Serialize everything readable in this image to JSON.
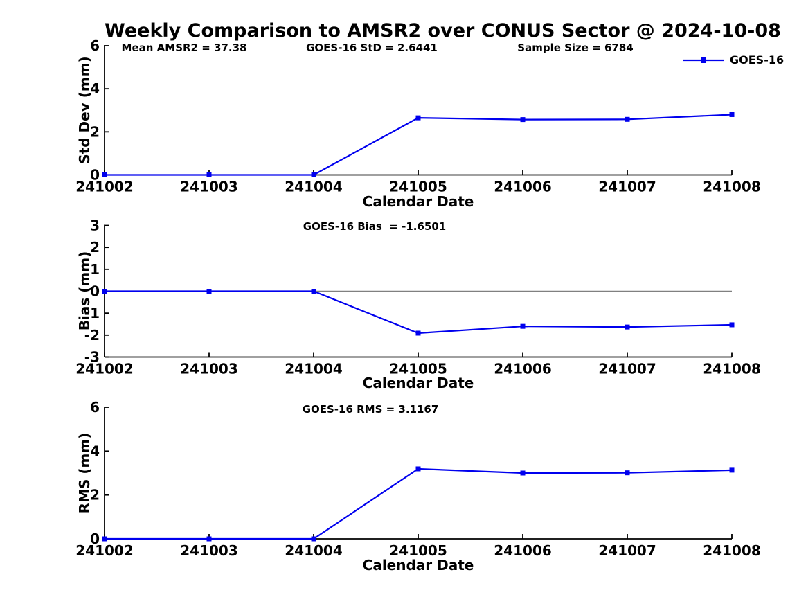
{
  "figure": {
    "title": "Weekly Comparison to AMSR2 over CONUS Sector @ 2024-10-08",
    "legend": {
      "label": "GOES-16",
      "marker": "filled-square"
    }
  },
  "colors": {
    "series": "#0000EE",
    "zero_line": "#808080",
    "axis": "#000000",
    "text": "#000000"
  },
  "chart_data": [
    {
      "type": "line",
      "subplot": "std-dev",
      "x": [
        "241002",
        "241003",
        "241004",
        "241005",
        "241006",
        "241007",
        "241008"
      ],
      "series": [
        {
          "name": "GOES-16",
          "values": [
            0,
            0,
            0,
            2.65,
            2.57,
            2.58,
            2.8
          ]
        }
      ],
      "xlabel": "Calendar Date",
      "ylabel": "Std Dev (mm)",
      "ylim": [
        0,
        6
      ],
      "yticks": [
        0,
        2,
        4,
        6
      ],
      "grid": false,
      "legend_position": "top-right-outside",
      "annotations": [
        "Mean AMSR2 = 37.38",
        "GOES-16 StD = 2.6441",
        "Sample Size = 6784"
      ]
    },
    {
      "type": "line",
      "subplot": "bias",
      "x": [
        "241002",
        "241003",
        "241004",
        "241005",
        "241006",
        "241007",
        "241008"
      ],
      "series": [
        {
          "name": "GOES-16",
          "values": [
            0,
            0,
            0,
            -1.91,
            -1.6,
            -1.63,
            -1.53
          ]
        }
      ],
      "xlabel": "Calendar Date",
      "ylabel": "Bias (mm)",
      "ylim": [
        -3,
        3
      ],
      "yticks": [
        -3,
        -2,
        -1,
        0,
        1,
        2,
        3
      ],
      "grid": false,
      "zero_line": true,
      "annotations": [
        "GOES-16 Bias  = -1.6501"
      ]
    },
    {
      "type": "line",
      "subplot": "rms",
      "x": [
        "241002",
        "241003",
        "241004",
        "241005",
        "241006",
        "241007",
        "241008"
      ],
      "series": [
        {
          "name": "GOES-16",
          "values": [
            0,
            0,
            0,
            3.19,
            3.0,
            3.01,
            3.13
          ]
        }
      ],
      "xlabel": "Calendar Date",
      "ylabel": "RMS (mm)",
      "ylim": [
        0,
        6
      ],
      "yticks": [
        0,
        2,
        4,
        6
      ],
      "grid": false,
      "annotations": [
        "GOES-16 RMS = 3.1167"
      ]
    }
  ]
}
